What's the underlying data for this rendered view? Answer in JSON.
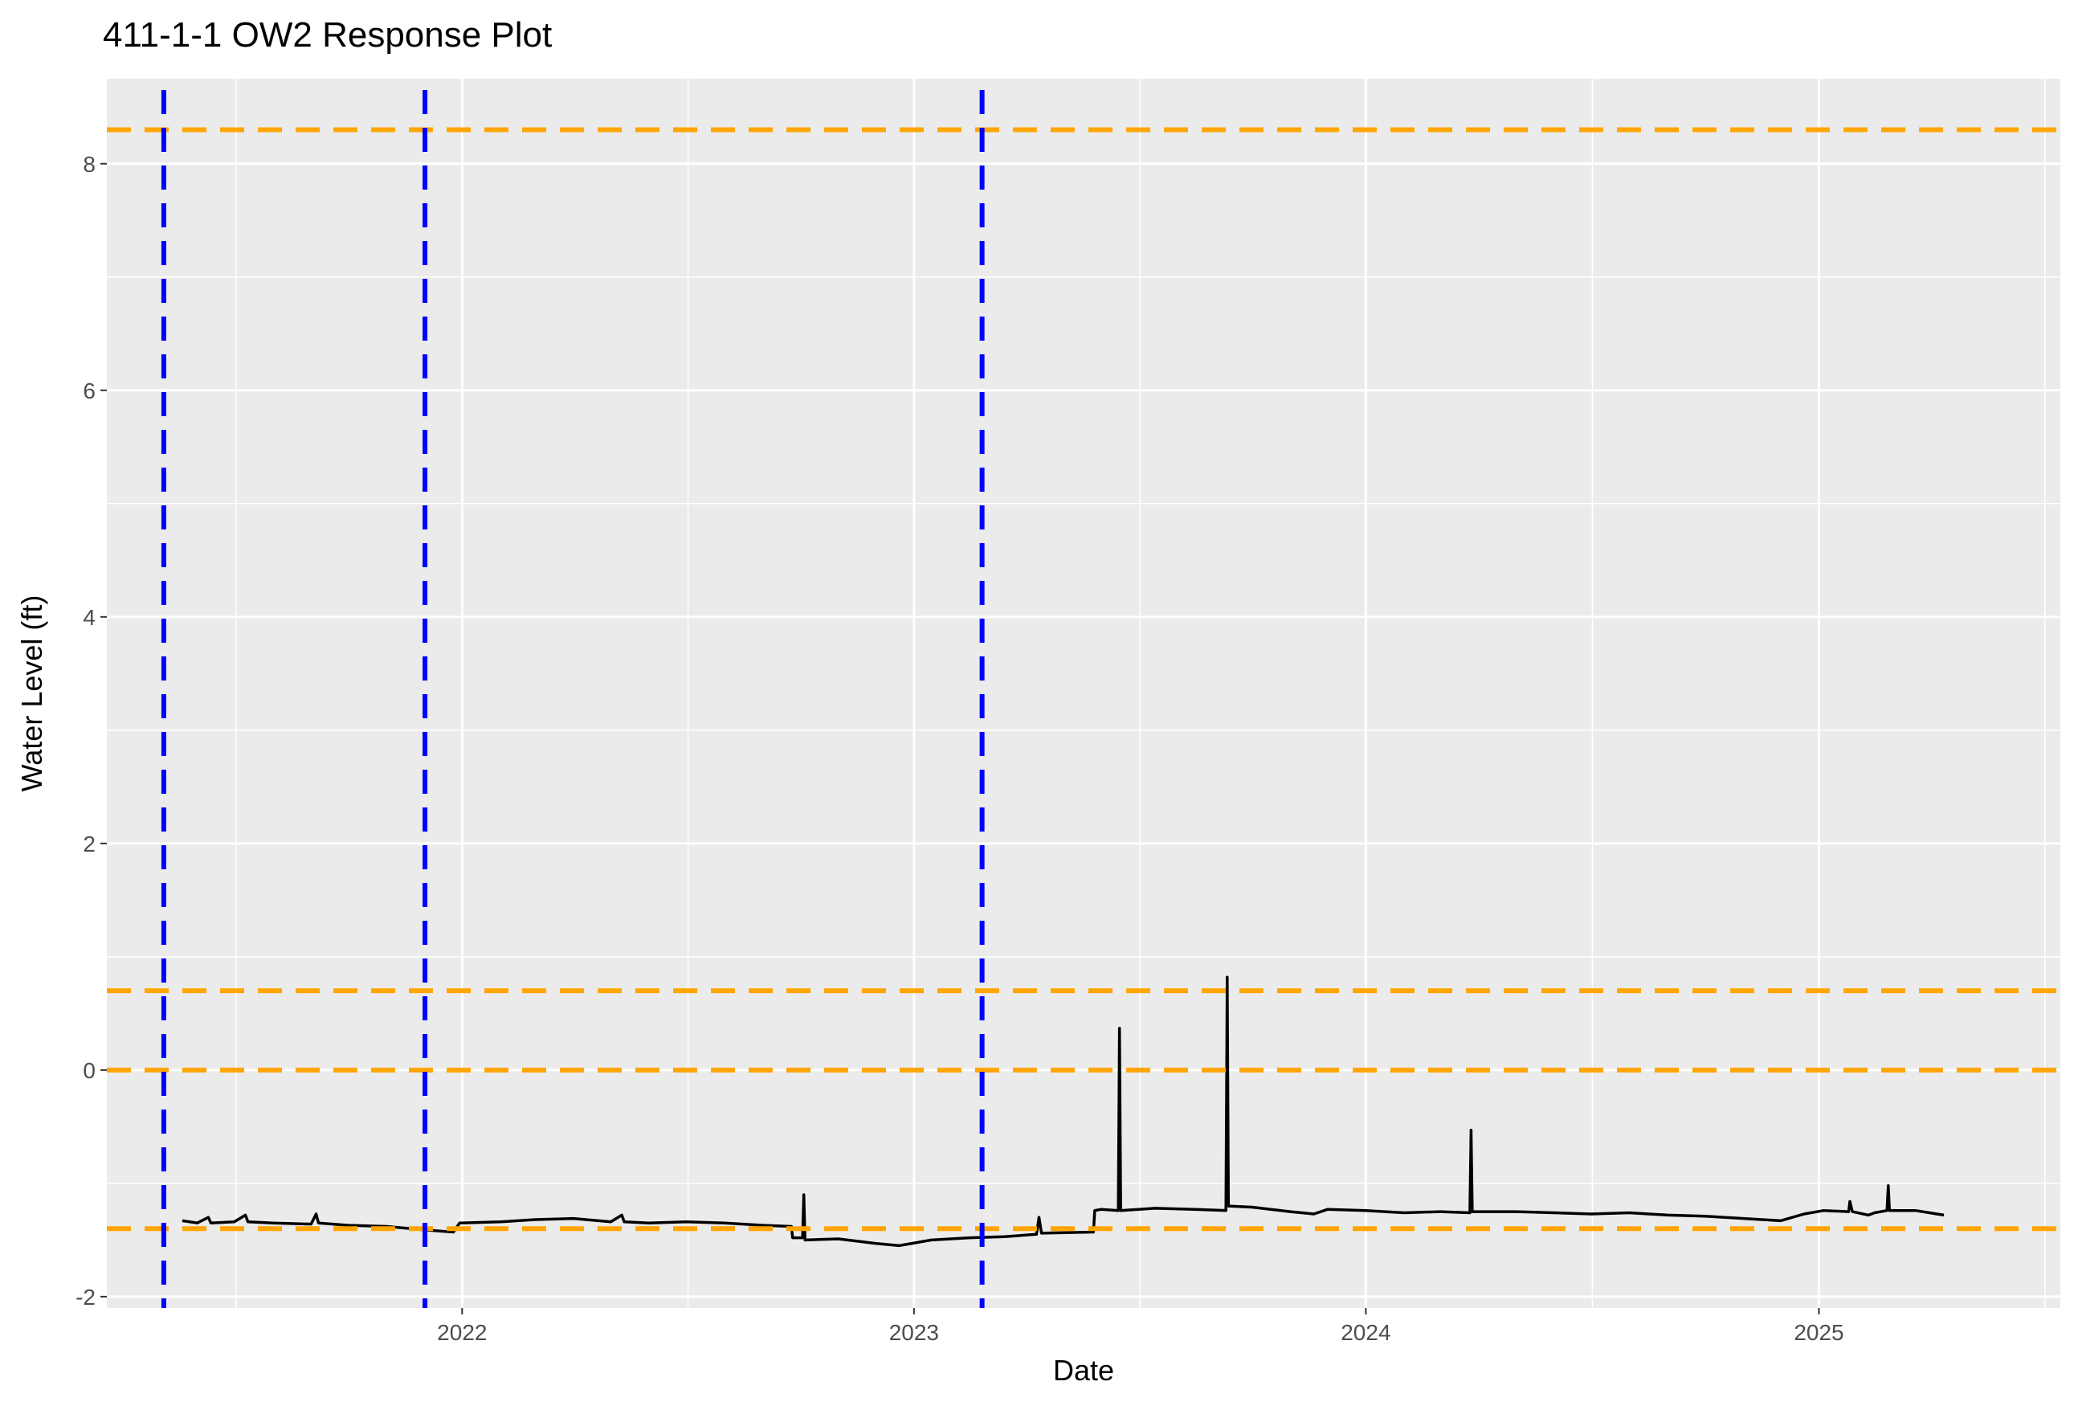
{
  "chart_data": {
    "type": "line",
    "title": "411-1-1 OW2 Response Plot",
    "xlabel": "Date",
    "ylabel": "Water Level (ft)",
    "xlim": [
      "2021-03-20",
      "2025-07-15"
    ],
    "ylim": [
      -2.1,
      8.75
    ],
    "x_ticks": [
      "2022-01-01",
      "2023-01-01",
      "2024-01-01",
      "2025-01-01"
    ],
    "x_tick_labels": [
      "2022",
      "2023",
      "2024",
      "2025"
    ],
    "y_ticks": [
      -2,
      0,
      2,
      4,
      6,
      8
    ],
    "y_tick_labels": [
      "-2",
      "0",
      "2",
      "4",
      "6",
      "8"
    ],
    "grid": true,
    "background": "#ebebeb",
    "grid_color": "#ffffff",
    "series": [
      {
        "color": "#000000",
        "points": [
          [
            "2021-05-20",
            -1.33
          ],
          [
            "2021-06-01",
            -1.35
          ],
          [
            "2021-06-10",
            -1.3
          ],
          [
            "2021-06-12",
            -1.35
          ],
          [
            "2021-07-01",
            -1.34
          ],
          [
            "2021-07-10",
            -1.28
          ],
          [
            "2021-07-12",
            -1.34
          ],
          [
            "2021-08-01",
            -1.35
          ],
          [
            "2021-09-01",
            -1.36
          ],
          [
            "2021-09-05",
            -1.27
          ],
          [
            "2021-09-07",
            -1.35
          ],
          [
            "2021-10-01",
            -1.37
          ],
          [
            "2021-11-01",
            -1.38
          ],
          [
            "2021-12-01",
            -1.41
          ],
          [
            "2021-12-25",
            -1.43
          ],
          [
            "2021-12-30",
            -1.35
          ],
          [
            "2022-02-01",
            -1.34
          ],
          [
            "2022-03-01",
            -1.32
          ],
          [
            "2022-04-01",
            -1.31
          ],
          [
            "2022-05-01",
            -1.34
          ],
          [
            "2022-05-10",
            -1.28
          ],
          [
            "2022-05-12",
            -1.34
          ],
          [
            "2022-06-01",
            -1.35
          ],
          [
            "2022-07-01",
            -1.34
          ],
          [
            "2022-08-01",
            -1.35
          ],
          [
            "2022-09-01",
            -1.37
          ],
          [
            "2022-09-24",
            -1.38
          ],
          [
            "2022-09-25",
            -1.48
          ],
          [
            "2022-10-03",
            -1.48
          ],
          [
            "2022-10-04",
            -1.1
          ],
          [
            "2022-10-05",
            -1.5
          ],
          [
            "2022-11-01",
            -1.49
          ],
          [
            "2022-12-01",
            -1.53
          ],
          [
            "2022-12-20",
            -1.55
          ],
          [
            "2023-01-15",
            -1.5
          ],
          [
            "2023-02-15",
            -1.48
          ],
          [
            "2023-03-15",
            -1.47
          ],
          [
            "2023-04-10",
            -1.45
          ],
          [
            "2023-04-12",
            -1.3
          ],
          [
            "2023-04-14",
            -1.44
          ],
          [
            "2023-05-26",
            -1.43
          ],
          [
            "2023-05-27",
            -1.24
          ],
          [
            "2023-06-01",
            -1.23
          ],
          [
            "2023-06-15",
            -1.24
          ],
          [
            "2023-06-16",
            0.37
          ],
          [
            "2023-06-17",
            -1.24
          ],
          [
            "2023-07-15",
            -1.22
          ],
          [
            "2023-08-15",
            -1.23
          ],
          [
            "2023-09-10",
            -1.24
          ],
          [
            "2023-09-11",
            0.82
          ],
          [
            "2023-09-12",
            -1.2
          ],
          [
            "2023-10-01",
            -1.21
          ],
          [
            "2023-11-01",
            -1.25
          ],
          [
            "2023-11-20",
            -1.27
          ],
          [
            "2023-12-01",
            -1.23
          ],
          [
            "2024-01-01",
            -1.24
          ],
          [
            "2024-02-01",
            -1.26
          ],
          [
            "2024-03-01",
            -1.25
          ],
          [
            "2024-03-25",
            -1.26
          ],
          [
            "2024-03-26",
            -0.53
          ],
          [
            "2024-03-27",
            -1.25
          ],
          [
            "2024-05-01",
            -1.25
          ],
          [
            "2024-06-01",
            -1.26
          ],
          [
            "2024-07-01",
            -1.27
          ],
          [
            "2024-08-01",
            -1.26
          ],
          [
            "2024-09-01",
            -1.28
          ],
          [
            "2024-10-01",
            -1.29
          ],
          [
            "2024-11-01",
            -1.31
          ],
          [
            "2024-12-01",
            -1.33
          ],
          [
            "2024-12-20",
            -1.27
          ],
          [
            "2025-01-05",
            -1.24
          ],
          [
            "2025-01-25",
            -1.25
          ],
          [
            "2025-01-26",
            -1.16
          ],
          [
            "2025-01-28",
            -1.25
          ],
          [
            "2025-02-10",
            -1.28
          ],
          [
            "2025-02-15",
            -1.26
          ],
          [
            "2025-02-25",
            -1.24
          ],
          [
            "2025-02-26",
            -1.02
          ],
          [
            "2025-02-27",
            -1.24
          ],
          [
            "2025-03-20",
            -1.24
          ],
          [
            "2025-04-12",
            -1.28
          ]
        ]
      }
    ],
    "reference_lines": {
      "horizontal": {
        "color": "#ffa500",
        "style": "dashed",
        "values": [
          8.3,
          0.7,
          0.0,
          -1.4
        ]
      },
      "vertical": {
        "color": "#0000ff",
        "style": "dashed",
        "values": [
          "2021-05-05",
          "2021-12-02",
          "2023-02-25"
        ]
      }
    }
  }
}
